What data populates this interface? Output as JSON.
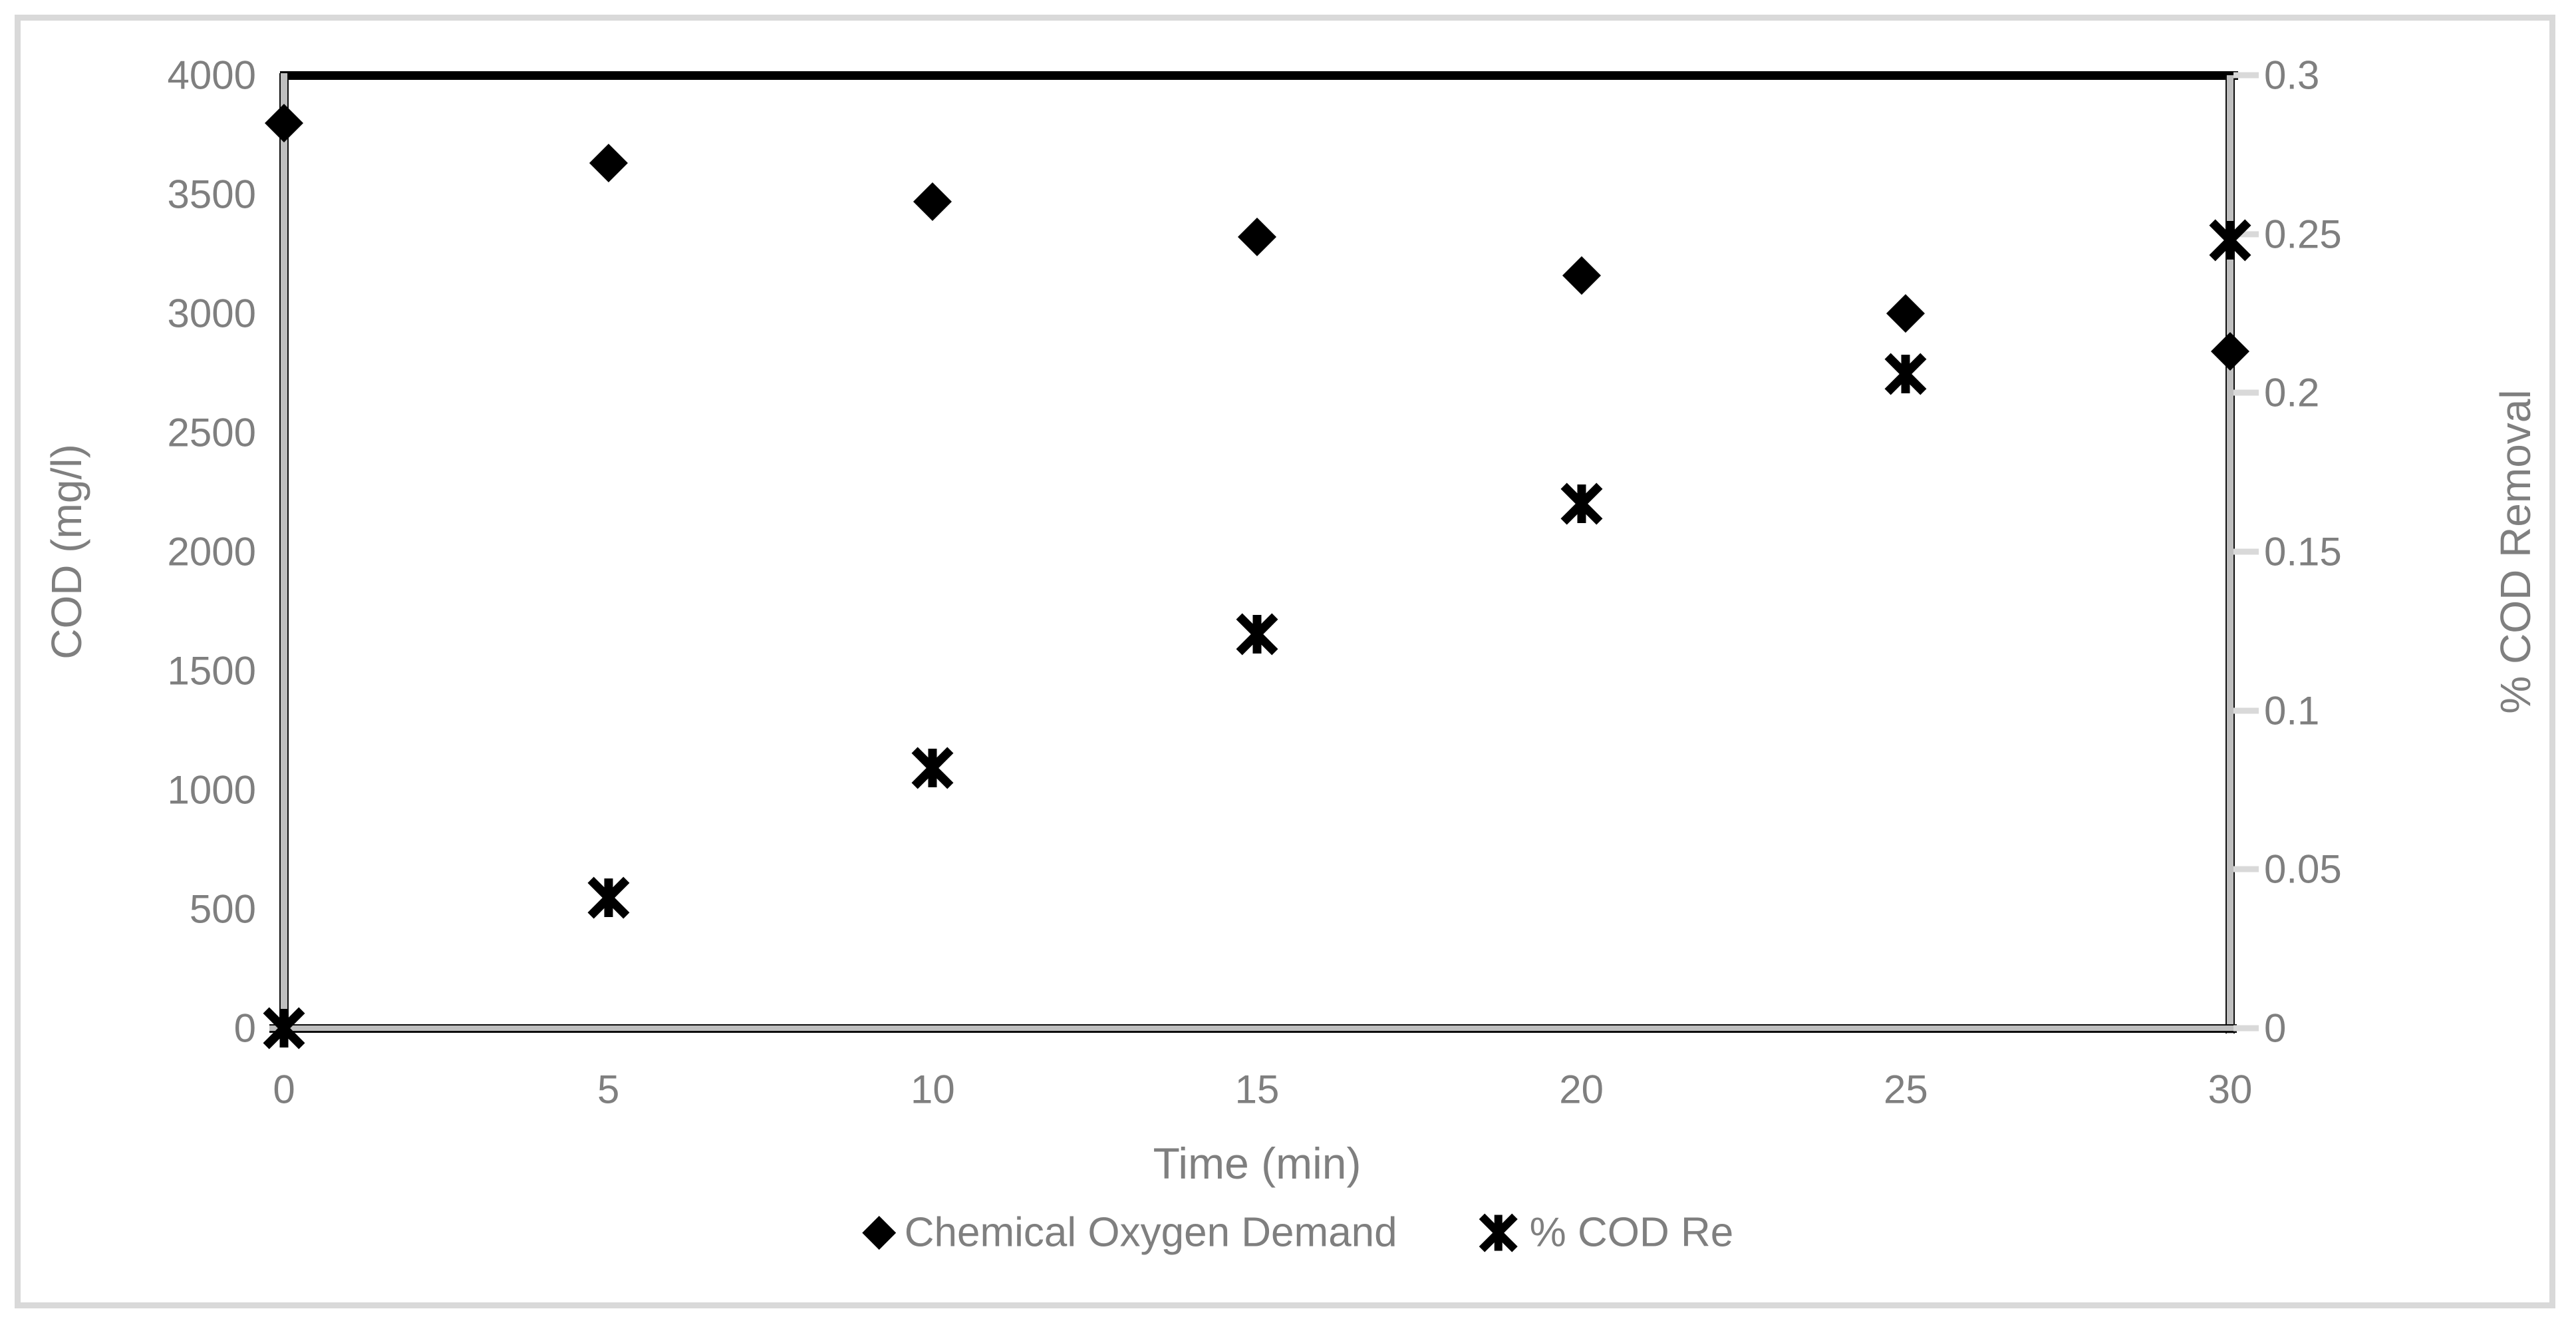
{
  "chart_data": {
    "type": "scatter",
    "title": "",
    "xlabel": "Time (min)",
    "ylabel_left": "COD (mg/l)",
    "ylabel_right": "% COD Removal",
    "x_range": [
      0,
      30
    ],
    "y_left_range": [
      0,
      4000
    ],
    "y_right_range": [
      0,
      0.3
    ],
    "x_ticks": [
      "0",
      "5",
      "10",
      "15",
      "20",
      "25",
      "30"
    ],
    "y_left_ticks": [
      "4000",
      "3500",
      "3000",
      "2500",
      "2000",
      "1500",
      "1000",
      "500",
      "0"
    ],
    "y_right_ticks": [
      "0.3",
      "0.25",
      "0.2",
      "0.15",
      "0.1",
      "0.05",
      "0"
    ],
    "grid": false,
    "legend_position": "bottom",
    "series": [
      {
        "name": "Chemical Oxygen Demand",
        "axis": "left",
        "marker": "diamond",
        "color": "#000000",
        "x": [
          0,
          5,
          10,
          15,
          20,
          25,
          30
        ],
        "y": [
          3800,
          3630,
          3470,
          3320,
          3160,
          3000,
          2840
        ]
      },
      {
        "name": "% COD Re",
        "axis": "right",
        "marker": "asterisk6",
        "color": "#000000",
        "x": [
          0,
          5,
          10,
          15,
          20,
          25,
          30
        ],
        "y": [
          0,
          0.041,
          0.082,
          0.124,
          0.165,
          0.206,
          0.248
        ]
      }
    ]
  },
  "colors": {
    "text": "#7f7f7f",
    "marker": "#000000",
    "axis_band": "#bfbfbf",
    "axis_edge": "#0d0d0d",
    "plot_top_border": "#000000",
    "outer_border": "#d9d9d9",
    "minor_tick": "#d9d9d9",
    "background": "#ffffff"
  }
}
